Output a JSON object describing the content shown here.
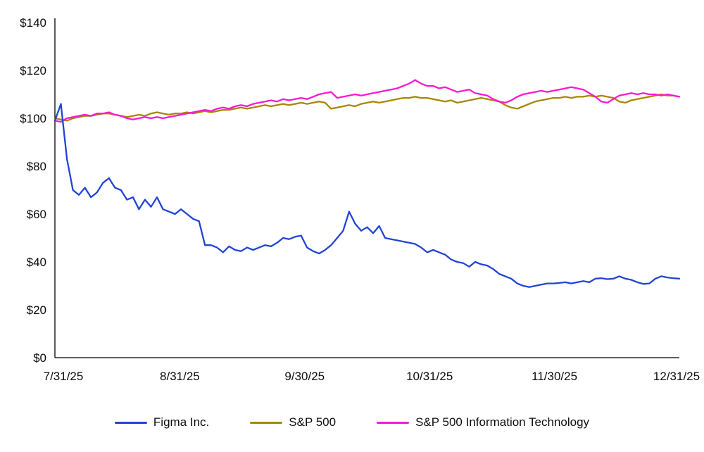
{
  "chart_data": {
    "type": "line",
    "title": "",
    "xlabel": "",
    "ylabel": "",
    "ylim": [
      0,
      140
    ],
    "y_tick_step": 20,
    "grid": false,
    "legend_position": "bottom",
    "x_tick_labels": [
      "7/31/25",
      "8/31/25",
      "9/30/25",
      "10/31/25",
      "11/30/25",
      "12/31/25"
    ],
    "y_tick_labels": [
      "$0",
      "$20",
      "$40",
      "$60",
      "$80",
      "$100",
      "$120",
      "$140"
    ],
    "series": [
      {
        "name": "Figma Inc.",
        "color": "#2244d6",
        "values": [
          99,
          106,
          83,
          70,
          68,
          71,
          67,
          69,
          73,
          75,
          71,
          70,
          66,
          67,
          62,
          66,
          63,
          67,
          62,
          61,
          60,
          62,
          60,
          58,
          57,
          47,
          47,
          46,
          44,
          46.5,
          45,
          44.5,
          46,
          45,
          46,
          47,
          46.5,
          48,
          50,
          49.5,
          50.5,
          51,
          46,
          44.5,
          43.5,
          45,
          47,
          50,
          53,
          61,
          56,
          53,
          54.5,
          52,
          55,
          50,
          49.5,
          49,
          48.5,
          48,
          47.5,
          46,
          44,
          45,
          44,
          43,
          41,
          40,
          39.5,
          38,
          40,
          39,
          38.5,
          37,
          35,
          34,
          33,
          31,
          30,
          29.5,
          30,
          30.5,
          31,
          31,
          31.2,
          31.5,
          31,
          31.5,
          32,
          31.5,
          33,
          33.2,
          32.8,
          33,
          34,
          33,
          32.5,
          31.5,
          30.8,
          31,
          33,
          34,
          33.5,
          33.2,
          33
        ]
      },
      {
        "name": "S&P 500",
        "color": "#a98700",
        "values": [
          100,
          99.5,
          99,
          100,
          100.5,
          101,
          101,
          101.5,
          102,
          102,
          101.5,
          101,
          100.5,
          101,
          101.5,
          101,
          102,
          102.5,
          102,
          101.5,
          102,
          102,
          102.5,
          102,
          102.5,
          103,
          102.5,
          103,
          103.5,
          103.5,
          104,
          104.5,
          104,
          104.5,
          105,
          105.5,
          105,
          105.5,
          106,
          105.5,
          106,
          106.5,
          106,
          106.5,
          107,
          106.5,
          104,
          104.5,
          105,
          105.5,
          105,
          106,
          106.5,
          107,
          106.5,
          107,
          107.5,
          108,
          108.5,
          108.5,
          109,
          108.5,
          108.5,
          108,
          107.5,
          107,
          107.5,
          106.5,
          107,
          107.5,
          108,
          108.5,
          108,
          107.5,
          107,
          105.5,
          104.5,
          104,
          105,
          106,
          107,
          107.5,
          108,
          108.5,
          108.5,
          109,
          108.5,
          109,
          109,
          109.5,
          109,
          109.5,
          109,
          108.5,
          107,
          106.5,
          107.5,
          108,
          108.5,
          109,
          109.5,
          110,
          109.5,
          109.5,
          109
        ]
      },
      {
        "name": "S&P 500 Information Technology",
        "color": "#fb19d0",
        "values": [
          99,
          98.5,
          100,
          100.5,
          101,
          101.5,
          101,
          102,
          102,
          102.5,
          101.5,
          101,
          100,
          99.5,
          100,
          100.5,
          100,
          100.5,
          100,
          100.5,
          101,
          101.5,
          102,
          102.5,
          103,
          103.5,
          103,
          104,
          104.5,
          104,
          105,
          105.5,
          105,
          106,
          106.5,
          107,
          107.5,
          107,
          108,
          107.5,
          108,
          108.5,
          108,
          109,
          110,
          110.5,
          111,
          108.5,
          109,
          109.5,
          110,
          109.5,
          110,
          110.5,
          111,
          111.5,
          112,
          112.5,
          113.5,
          114.5,
          116,
          114.5,
          113.5,
          113.5,
          112.5,
          113,
          112,
          111,
          111.5,
          112,
          110.5,
          110,
          109.5,
          108,
          107,
          106.5,
          107.5,
          109,
          110,
          110.5,
          111,
          111.5,
          111,
          111.5,
          112,
          112.5,
          113,
          112.5,
          112,
          110.5,
          109,
          107,
          106.5,
          108,
          109.5,
          110,
          110.5,
          110,
          110.5,
          110,
          110,
          109.5,
          110,
          109.5,
          109
        ]
      }
    ]
  }
}
